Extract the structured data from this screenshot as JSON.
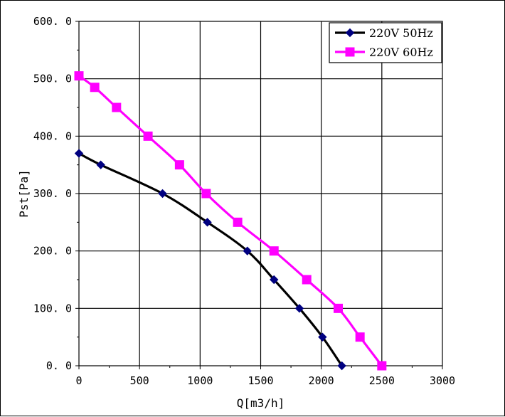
{
  "chart_data": {
    "type": "line",
    "xlabel": "Q[m3/h]",
    "ylabel": "Pst[Pa]",
    "xlim": [
      0,
      3000
    ],
    "ylim": [
      0,
      600
    ],
    "x_ticks": [
      0,
      500,
      1000,
      1500,
      2000,
      2500,
      3000
    ],
    "y_ticks": [
      0,
      100,
      200,
      300,
      400,
      500,
      600
    ],
    "x_tick_labels": [
      "0",
      "500",
      "1000",
      "1500",
      "2000",
      "2500",
      "3000"
    ],
    "y_tick_labels": [
      "0. 0",
      "100. 0",
      "200. 0",
      "300. 0",
      "400. 0",
      "500. 0",
      "600. 0"
    ],
    "grid": true,
    "legend_position": "top-right",
    "series": [
      {
        "name": "220V 50Hz",
        "color": "#000000",
        "marker": "diamond",
        "marker_color": "#000080",
        "x": [
          0,
          180,
          690,
          1060,
          1390,
          1610,
          1820,
          2010,
          2170
        ],
        "y": [
          370,
          350,
          300,
          250,
          200,
          150,
          100,
          50,
          0
        ]
      },
      {
        "name": "220V 60Hz",
        "color": "#FF00FF",
        "marker": "square",
        "marker_color": "#FF00FF",
        "x": [
          0,
          130,
          310,
          570,
          830,
          1050,
          1310,
          1610,
          1880,
          2140,
          2320,
          2500
        ],
        "y": [
          505,
          485,
          450,
          400,
          350,
          300,
          250,
          200,
          150,
          100,
          50,
          0
        ]
      }
    ]
  }
}
